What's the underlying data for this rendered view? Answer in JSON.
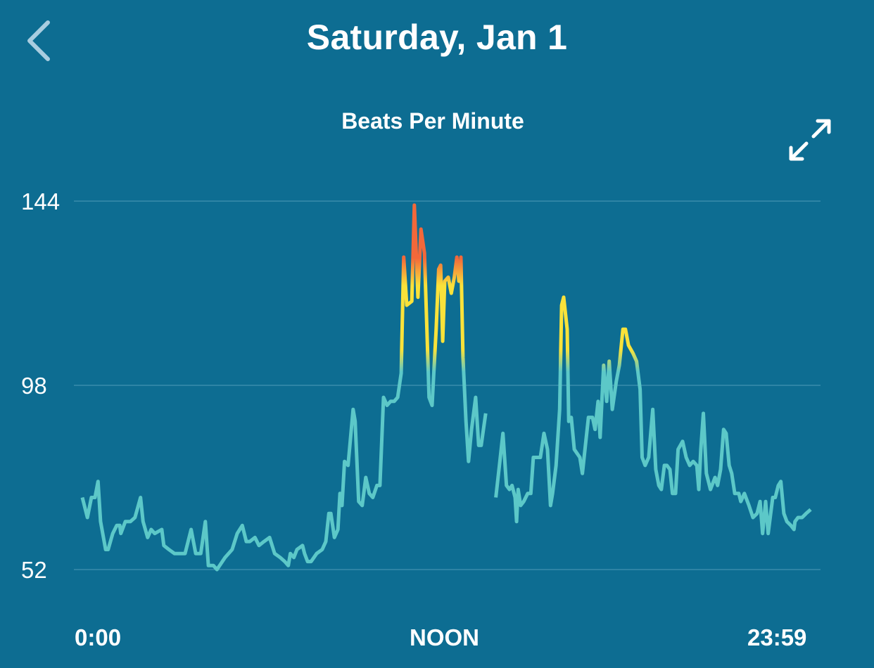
{
  "header": {
    "title": "Saturday, Jan 1",
    "back_icon": "chevron-left-icon"
  },
  "colors": {
    "background": "#0d6d92",
    "line_low": "#5cc8c8",
    "line_mid": "#f9e23a",
    "line_high": "#f2683a",
    "gridline": "#4f9cb8",
    "back_icon": "#a9cde0"
  },
  "expand_icon": "expand-arrows-icon",
  "chart_data": {
    "type": "line",
    "title": "Beats Per Minute",
    "ylim": [
      52,
      144
    ],
    "yticks": [
      "144",
      "98",
      "52"
    ],
    "xticks": [
      "0:00",
      "NOON",
      "23:59"
    ],
    "xrange": [
      "0:00",
      "23:59"
    ],
    "grid": true,
    "series": [
      {
        "segments": [
          [
            [
              "0:00",
              70
            ],
            [
              "0:10",
              65
            ],
            [
              "0:18",
              70
            ],
            [
              "0:25",
              70
            ],
            [
              "0:31",
              74
            ],
            [
              "0:36",
              64
            ],
            [
              "0:46",
              57
            ],
            [
              "0:51",
              57
            ],
            [
              "1:00",
              61
            ],
            [
              "1:08",
              63
            ],
            [
              "1:14",
              63
            ],
            [
              "1:16",
              61
            ],
            [
              "1:25",
              64
            ],
            [
              "1:35",
              64
            ],
            [
              "1:44",
              65
            ],
            [
              "1:55",
              70
            ],
            [
              "2:00",
              64
            ],
            [
              "2:09",
              60
            ],
            [
              "2:16",
              62
            ],
            [
              "2:23",
              61
            ],
            [
              "2:37",
              62
            ],
            [
              "2:41",
              58
            ],
            [
              "2:51",
              57
            ],
            [
              "3:02",
              56
            ],
            [
              "3:12",
              56
            ],
            [
              "3:23",
              56
            ],
            [
              "3:35",
              62
            ],
            [
              "3:44",
              56
            ],
            [
              "3:54",
              56
            ],
            [
              "4:03",
              64
            ],
            [
              "4:09",
              53
            ],
            [
              "4:19",
              53
            ],
            [
              "4:26",
              52
            ],
            [
              "4:42",
              55
            ],
            [
              "4:56",
              57
            ],
            [
              "5:06",
              61
            ],
            [
              "5:16",
              63
            ],
            [
              "5:24",
              59
            ],
            [
              "5:31",
              59
            ],
            [
              "5:41",
              60
            ],
            [
              "5:49",
              58
            ],
            [
              "5:59",
              59
            ],
            [
              "6:10",
              60
            ],
            [
              "6:20",
              56
            ],
            [
              "6:31",
              55
            ],
            [
              "6:40",
              54
            ],
            [
              "6:47",
              53
            ],
            [
              "6:51",
              56
            ],
            [
              "6:58",
              55
            ],
            [
              "7:04",
              57
            ],
            [
              "7:15",
              58
            ],
            [
              "7:19",
              56
            ],
            [
              "7:25",
              54
            ],
            [
              "7:32",
              54
            ],
            [
              "7:43",
              56
            ],
            [
              "7:54",
              57
            ],
            [
              "8:01",
              59
            ],
            [
              "8:07",
              66
            ],
            [
              "8:11",
              66
            ],
            [
              "8:18",
              60
            ],
            [
              "8:25",
              62
            ],
            [
              "8:29",
              71
            ],
            [
              "8:33",
              68
            ],
            [
              "8:38",
              79
            ],
            [
              "8:45",
              78
            ],
            [
              "8:55",
              92
            ],
            [
              "8:59",
              89
            ],
            [
              "9:06",
              69
            ],
            [
              "9:13",
              68
            ],
            [
              "9:20",
              75
            ],
            [
              "9:27",
              71
            ],
            [
              "9:34",
              70
            ],
            [
              "9:42",
              73
            ],
            [
              "9:48",
              73
            ],
            [
              "9:55",
              95
            ],
            [
              "10:02",
              93
            ],
            [
              "10:09",
              94
            ],
            [
              "10:16",
              94
            ],
            [
              "10:23",
              95
            ],
            [
              "10:30",
              101
            ],
            [
              "10:35",
              130
            ],
            [
              "10:41",
              118
            ],
            [
              "10:51",
              119
            ],
            [
              "10:56",
              143
            ],
            [
              "11:03",
              120
            ],
            [
              "11:09",
              137
            ],
            [
              "11:16",
              131
            ],
            [
              "11:25",
              95
            ],
            [
              "11:31",
              93
            ],
            [
              "11:39",
              112
            ],
            [
              "11:44",
              127
            ],
            [
              "11:48",
              128
            ],
            [
              "11:52",
              109
            ],
            [
              "11:56",
              124
            ],
            [
              "12:03",
              125
            ],
            [
              "12:09",
              121
            ],
            [
              "12:15",
              125
            ],
            [
              "12:20",
              130
            ],
            [
              "12:24",
              124
            ],
            [
              "12:28",
              130
            ],
            [
              "12:32",
              105
            ],
            [
              "12:38",
              89
            ],
            [
              "12:43",
              79
            ],
            [
              "12:49",
              87
            ],
            [
              "12:57",
              95
            ],
            [
              "13:03",
              83
            ],
            [
              "13:08",
              83
            ],
            [
              "13:17",
              91
            ]
          ],
          [
            [
              "13:37",
              70
            ],
            [
              "13:44",
              78
            ],
            [
              "13:51",
              86
            ],
            [
              "13:58",
              73
            ],
            [
              "14:04",
              72
            ],
            [
              "14:09",
              73
            ],
            [
              "14:15",
              70
            ],
            [
              "14:18",
              64
            ],
            [
              "14:21",
              72
            ],
            [
              "14:26",
              68
            ],
            [
              "14:32",
              69
            ],
            [
              "14:40",
              71
            ],
            [
              "14:46",
              71
            ],
            [
              "14:51",
              80
            ],
            [
              "15:00",
              80
            ],
            [
              "15:05",
              80
            ],
            [
              "15:12",
              86
            ],
            [
              "15:19",
              82
            ],
            [
              "15:25",
              68
            ],
            [
              "15:29",
              71
            ],
            [
              "15:36",
              78
            ],
            [
              "15:43",
              92
            ],
            [
              "15:47",
              118
            ],
            [
              "15:51",
              120
            ],
            [
              "15:58",
              112
            ],
            [
              "16:01",
              89
            ],
            [
              "16:06",
              90
            ],
            [
              "16:12",
              82
            ],
            [
              "16:23",
              80
            ],
            [
              "16:28",
              76
            ],
            [
              "16:34",
              83
            ],
            [
              "16:40",
              90
            ],
            [
              "16:48",
              90
            ],
            [
              "16:53",
              87
            ],
            [
              "16:59",
              94
            ],
            [
              "17:03",
              85
            ],
            [
              "17:10",
              103
            ],
            [
              "17:16",
              94
            ],
            [
              "17:21",
              104
            ],
            [
              "17:27",
              92
            ],
            [
              "17:35",
              99
            ],
            [
              "17:41",
              103
            ],
            [
              "17:48",
              112
            ],
            [
              "17:53",
              112
            ],
            [
              "17:59",
              108
            ],
            [
              "18:08",
              106
            ],
            [
              "18:15",
              104
            ],
            [
              "18:22",
              97
            ],
            [
              "18:26",
              80
            ],
            [
              "18:32",
              78
            ],
            [
              "18:39",
              80
            ],
            [
              "18:47",
              92
            ],
            [
              "18:53",
              77
            ],
            [
              "18:59",
              73
            ],
            [
              "19:04",
              72
            ],
            [
              "19:10",
              78
            ],
            [
              "19:15",
              78
            ],
            [
              "19:21",
              77
            ],
            [
              "19:26",
              71
            ],
            [
              "19:32",
              71
            ],
            [
              "19:37",
              82
            ],
            [
              "19:46",
              84
            ],
            [
              "19:53",
              80
            ],
            [
              "20:00",
              78
            ],
            [
              "20:07",
              79
            ],
            [
              "20:14",
              78
            ],
            [
              "20:18",
              72
            ],
            [
              "20:22",
              82
            ],
            [
              "20:27",
              91
            ],
            [
              "20:33",
              76
            ],
            [
              "20:41",
              72
            ],
            [
              "20:50",
              75
            ],
            [
              "20:55",
              73
            ],
            [
              "21:01",
              77
            ],
            [
              "21:07",
              87
            ],
            [
              "21:12",
              86
            ],
            [
              "21:18",
              78
            ],
            [
              "21:23",
              76
            ],
            [
              "21:29",
              71
            ],
            [
              "21:37",
              71
            ],
            [
              "21:41",
              69
            ],
            [
              "21:48",
              71
            ],
            [
              "21:57",
              68
            ],
            [
              "22:05",
              65
            ],
            [
              "22:13",
              66
            ],
            [
              "22:19",
              69
            ],
            [
              "22:24",
              61
            ],
            [
              "22:30",
              69
            ],
            [
              "22:35",
              61
            ],
            [
              "22:44",
              70
            ],
            [
              "22:49",
              70
            ],
            [
              "22:55",
              73
            ],
            [
              "23:00",
              74
            ],
            [
              "23:06",
              66
            ],
            [
              "23:12",
              64
            ],
            [
              "23:20",
              63
            ],
            [
              "23:26",
              62
            ],
            [
              "23:28",
              64
            ],
            [
              "23:34",
              65
            ],
            [
              "23:42",
              65
            ],
            [
              "23:50",
              66
            ],
            [
              "23:59",
              67
            ]
          ]
        ]
      }
    ]
  }
}
